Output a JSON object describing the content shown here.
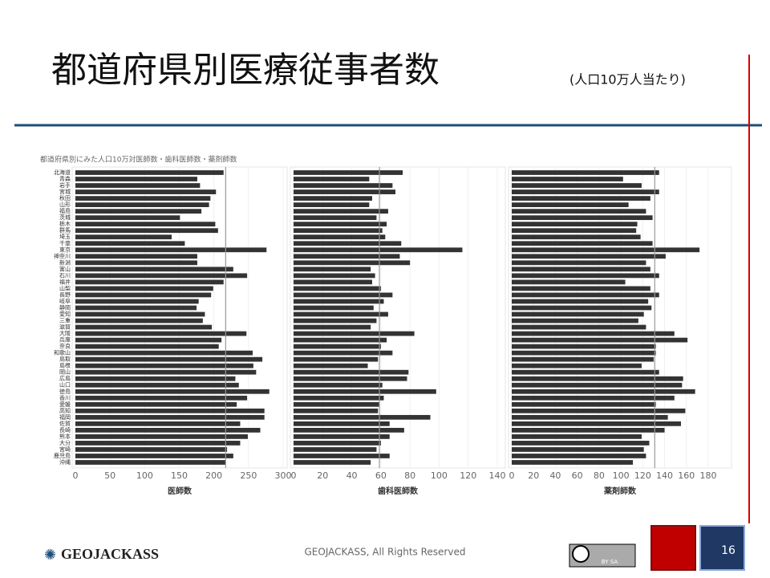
{
  "header": {
    "title": "都道府県別医療従事者数",
    "subtitle": "(人口10万人当たり)"
  },
  "chart_data": {
    "type": "bar",
    "orientation": "horizontal",
    "title": "都道府県別にみた人口10万対医師数・歯科医師数・薬剤師数",
    "color": "#333333",
    "categories": [
      "北海道",
      "青森",
      "岩手",
      "宮城",
      "秋田",
      "山形",
      "福島",
      "茨城",
      "栃木",
      "群馬",
      "埼玉",
      "千葉",
      "東京",
      "神奈川",
      "新潟",
      "富山",
      "石川",
      "福井",
      "山梨",
      "長野",
      "岐阜",
      "静岡",
      "愛知",
      "三重",
      "滋賀",
      "大阪",
      "兵庫",
      "奈良",
      "和歌山",
      "鳥取",
      "島根",
      "岡山",
      "広島",
      "山口",
      "徳島",
      "香川",
      "愛媛",
      "高知",
      "福岡",
      "佐賀",
      "長崎",
      "熊本",
      "大分",
      "宮崎",
      "鹿児島",
      "沖縄"
    ],
    "series": [
      {
        "name": "医師数",
        "xlim": [
          0,
          300
        ],
        "xticks": [
          0,
          50,
          100,
          150,
          200,
          250,
          300
        ],
        "reference": 217,
        "values": [
          214,
          176,
          180,
          203,
          195,
          193,
          182,
          151,
          202,
          206,
          139,
          158,
          276,
          176,
          176,
          228,
          248,
          214,
          199,
          196,
          178,
          175,
          187,
          184,
          197,
          247,
          211,
          207,
          256,
          270,
          257,
          261,
          231,
          236,
          280,
          248,
          233,
          273,
          273,
          238,
          267,
          249,
          238,
          219,
          228,
          217
        ]
      },
      {
        "name": "歯科医師数",
        "xlim": [
          0,
          140
        ],
        "xticks": [
          0,
          20,
          40,
          60,
          80,
          100,
          120,
          140
        ],
        "reference": 59,
        "values": [
          75,
          52,
          68,
          70,
          54,
          52,
          65,
          57,
          64,
          61,
          63,
          74,
          116,
          73,
          80,
          53,
          56,
          54,
          60,
          68,
          62,
          55,
          65,
          57,
          53,
          83,
          64,
          60,
          68,
          58,
          51,
          79,
          78,
          61,
          98,
          62,
          59,
          58,
          94,
          66,
          76,
          66,
          60,
          57,
          66,
          53
        ]
      },
      {
        "name": "薬剤師数",
        "xlim": [
          0,
          180
        ],
        "xticks": [
          0,
          20,
          40,
          60,
          80,
          100,
          120,
          140,
          160,
          180
        ],
        "reference": 131,
        "values": [
          135,
          102,
          119,
          135,
          127,
          107,
          123,
          129,
          115,
          114,
          118,
          129,
          172,
          141,
          123,
          127,
          135,
          104,
          127,
          135,
          125,
          128,
          121,
          116,
          123,
          149,
          161,
          132,
          132,
          130,
          119,
          135,
          157,
          156,
          168,
          149,
          132,
          159,
          143,
          155,
          140,
          119,
          126,
          121,
          123,
          111
        ]
      }
    ]
  },
  "footer": {
    "logo": "GEOJACKASS",
    "copyright": "GEOJACKASS, All Rights Reserved",
    "license": "BY SA",
    "page": "16"
  }
}
